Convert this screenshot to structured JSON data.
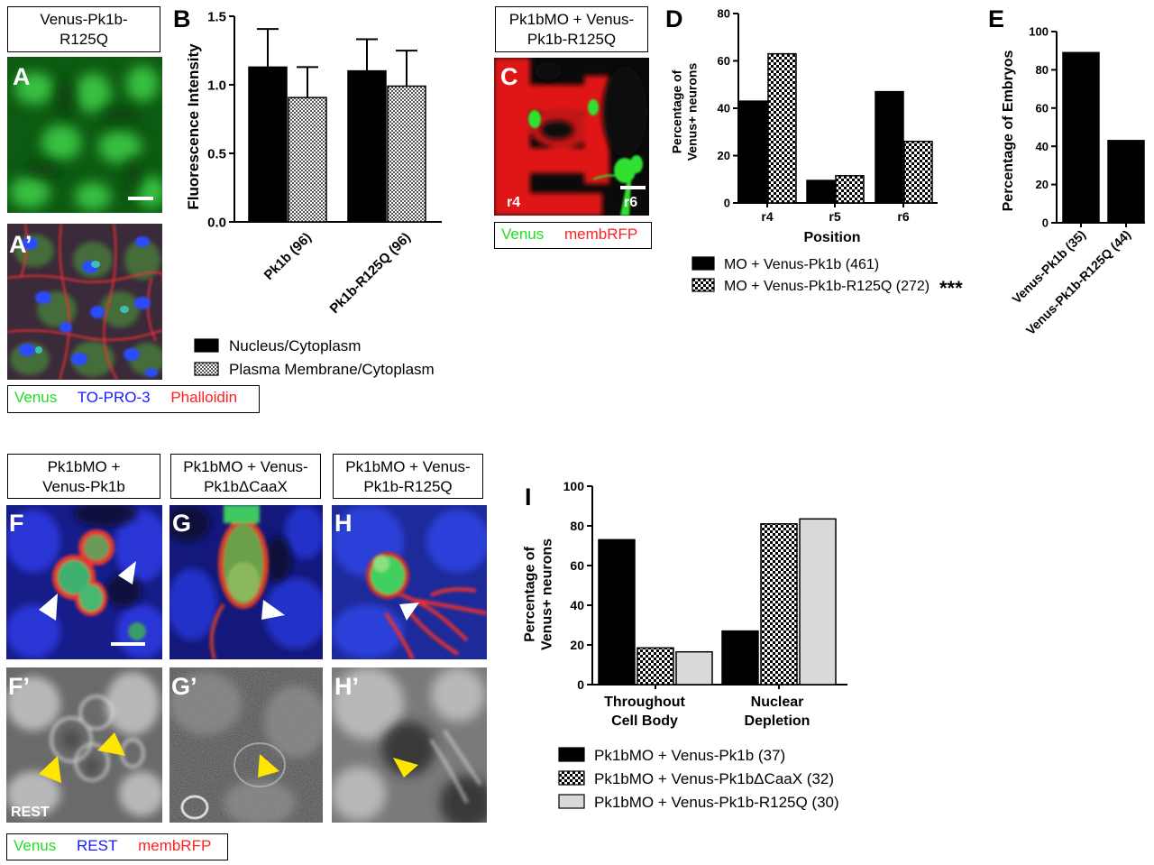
{
  "colors": {
    "venus": "#22dd22",
    "to_pro_3": "#1a1aff",
    "phalloidin": "#ff2020",
    "rest": "#1a1aff",
    "membrfp": "#ff2020",
    "arrowhead_white": "#ffffff",
    "arrowhead_yellow": "#ffe600"
  },
  "panels": {
    "A": {
      "letter": "A",
      "title_lines": [
        "Venus-Pk1b-",
        "R125Q"
      ]
    },
    "A_prime": {
      "letter": "A’"
    },
    "A_channels": [
      "Venus",
      "TO-PRO-3",
      "Phalloidin"
    ],
    "B": {
      "letter": "B"
    },
    "C": {
      "letter": "C",
      "title_lines": [
        "Pk1bMO + Venus-",
        "Pk1b-R125Q"
      ],
      "rhombomere_left": "r4",
      "rhombomere_right": "r6",
      "channels": [
        "Venus",
        "membRFP"
      ]
    },
    "D": {
      "letter": "D"
    },
    "E": {
      "letter": "E"
    },
    "F": {
      "letter": "F",
      "title_lines": [
        "Pk1bMO +",
        "Venus-Pk1b"
      ]
    },
    "G": {
      "letter": "G",
      "title_lines": [
        "Pk1bMO + Venus-",
        "Pk1bΔCaaX"
      ]
    },
    "H": {
      "letter": "H",
      "title_lines": [
        "Pk1bMO + Venus-",
        "Pk1b-R125Q"
      ]
    },
    "F_prime": {
      "letter": "F’",
      "stain_label": "REST"
    },
    "G_prime": {
      "letter": "G’"
    },
    "H_prime": {
      "letter": "H’"
    },
    "FGH_channels": [
      "Venus",
      "REST",
      "membRFP"
    ],
    "I": {
      "letter": "I"
    }
  },
  "chart_data": [
    {
      "id": "B",
      "type": "bar",
      "ylabel": "Fluorescence Intensity",
      "ylim": [
        0,
        1.5
      ],
      "yticks": [
        "0.0",
        "0.5",
        "1.0",
        "1.5"
      ],
      "categories": [
        "Pk1b (96)",
        "Pk1b-R125Q (96)"
      ],
      "series": [
        {
          "name": "Nucleus/Cytoplasm",
          "pattern": "solid-black",
          "values": [
            1.22,
            1.19
          ],
          "errors": [
            0.3,
            0.25
          ]
        },
        {
          "name": "Plasma Membrane/Cytoplasm",
          "pattern": "fine-checker",
          "values": [
            0.98,
            1.07
          ],
          "errors": [
            0.24,
            0.28
          ]
        }
      ],
      "legend_position": "bottom"
    },
    {
      "id": "D",
      "type": "bar",
      "ylabel_lines": [
        "Percentage of",
        "Venus+ neurons"
      ],
      "xlabel": "Position",
      "ylim": [
        0,
        80
      ],
      "yticks": [
        "0",
        "20",
        "40",
        "60",
        "80"
      ],
      "categories": [
        "r4",
        "r5",
        "r6"
      ],
      "series": [
        {
          "name": "MO + Venus-Pk1b (461)",
          "pattern": "solid-black",
          "values": [
            43,
            9.5,
            47
          ]
        },
        {
          "name": "MO + Venus-Pk1b-R125Q (272)",
          "pattern": "checker",
          "values": [
            63,
            11.5,
            26
          ]
        }
      ],
      "significance": "***",
      "legend_position": "bottom"
    },
    {
      "id": "E",
      "type": "bar",
      "ylabel": "Percentage of Embryos",
      "ylim": [
        0,
        100
      ],
      "yticks": [
        "0",
        "20",
        "40",
        "60",
        "80",
        "100"
      ],
      "categories": [
        "Venus-Pk1b (35)",
        "Venus-Pk1b-R125Q (44)"
      ],
      "values": [
        89,
        43
      ]
    },
    {
      "id": "I",
      "type": "bar",
      "ylabel_lines": [
        "Percentage of",
        "Venus+ neurons"
      ],
      "ylim": [
        0,
        100
      ],
      "yticks": [
        "0",
        "20",
        "40",
        "60",
        "80",
        "100"
      ],
      "categories": [
        [
          "Throughout",
          "Cell Body"
        ],
        [
          "Nuclear",
          "Depletion"
        ]
      ],
      "series": [
        {
          "name": "Pk1bMO + Venus-Pk1b (37)",
          "pattern": "solid-black",
          "values": [
            73,
            27
          ]
        },
        {
          "name": "Pk1bMO + Venus-Pk1bΔCaaX (32)",
          "pattern": "checker",
          "values": [
            18.5,
            81
          ]
        },
        {
          "name": "Pk1bMO + Venus-Pk1b-R125Q (30)",
          "pattern": "light-gray",
          "values": [
            16.5,
            83.5
          ]
        }
      ],
      "legend_position": "bottom"
    }
  ]
}
